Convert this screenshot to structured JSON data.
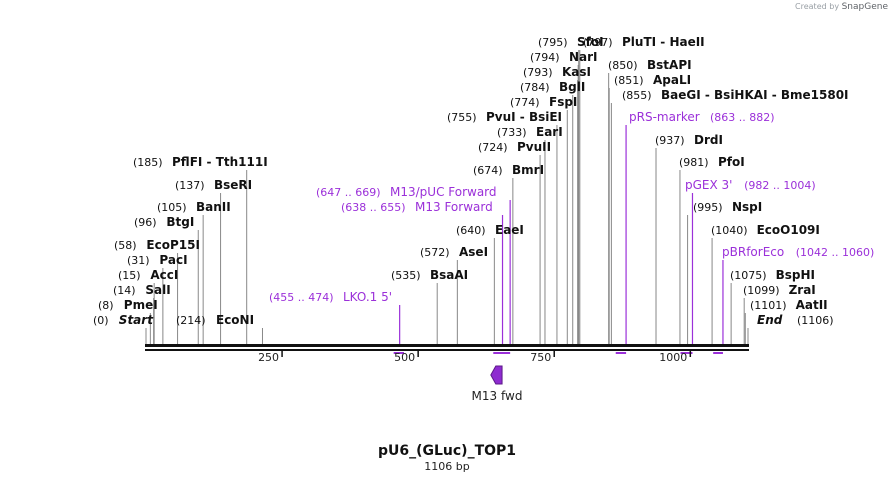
{
  "credit": {
    "prefix": "Created by",
    "brand": "SnapGene"
  },
  "plasmid": {
    "name": "pU6_(GLuc)_TOP1",
    "length_label": "1106 bp",
    "length": 1106
  },
  "axis": {
    "ticks": [
      "250",
      "500",
      "750",
      "1000"
    ]
  },
  "primer_label": "M13 fwd",
  "colors": {
    "enzyme": "#111111",
    "feature": "#9b30d9",
    "backbone": "#111111",
    "leader": "#888888"
  },
  "enzymes": [
    {
      "name": "Start",
      "pos": "(0)",
      "bp": 0,
      "italic": true
    },
    {
      "name": "PmeI",
      "pos": "(8)",
      "bp": 8
    },
    {
      "name": "SalI",
      "pos": "(14)",
      "bp": 14
    },
    {
      "name": "AccI",
      "pos": "(15)",
      "bp": 15
    },
    {
      "name": "PacI",
      "pos": "(31)",
      "bp": 31
    },
    {
      "name": "EcoP15I",
      "pos": "(58)",
      "bp": 58
    },
    {
      "name": "BtgI",
      "pos": "(96)",
      "bp": 96
    },
    {
      "name": "BanII",
      "pos": "(105)",
      "bp": 105
    },
    {
      "name": "BseRI",
      "pos": "(137)",
      "bp": 137
    },
    {
      "name": "PflFI  -  Tth111I",
      "pos": "(185)",
      "bp": 185
    },
    {
      "name": "EcoNI",
      "pos": "(214)",
      "bp": 214,
      "posLeft": true
    },
    {
      "name": "BsaAI",
      "pos": "(535)",
      "bp": 535
    },
    {
      "name": "AseI",
      "pos": "(572)",
      "bp": 572
    },
    {
      "name": "EaeI",
      "pos": "(640)",
      "bp": 640
    },
    {
      "name": "BmrI",
      "pos": "(674)",
      "bp": 674
    },
    {
      "name": "PvuII",
      "pos": "(724)",
      "bp": 724
    },
    {
      "name": "EarI",
      "pos": "(733)",
      "bp": 733
    },
    {
      "name": "PvuI  -  BsiEI",
      "pos": "(755)",
      "bp": 755
    },
    {
      "name": "FspI",
      "pos": "(774)",
      "bp": 774
    },
    {
      "name": "BglI",
      "pos": "(784)",
      "bp": 784
    },
    {
      "name": "KasI",
      "pos": "(793)",
      "bp": 793
    },
    {
      "name": "NarI",
      "pos": "(794)",
      "bp": 794
    },
    {
      "name": "SfoI",
      "pos": "(795)",
      "bp": 795
    },
    {
      "name": "PluTI  -  HaeII",
      "pos": "(797)",
      "bp": 797
    },
    {
      "name": "BstAPI",
      "pos": "(850)",
      "bp": 850
    },
    {
      "name": "ApaLI",
      "pos": "(851)",
      "bp": 851
    },
    {
      "name": "BaeGI  -  BsiHKAI  -  Bme1580I",
      "pos": "(855)",
      "bp": 855
    },
    {
      "name": "DrdI",
      "pos": "(937)",
      "bp": 937
    },
    {
      "name": "PfoI",
      "pos": "(981)",
      "bp": 981
    },
    {
      "name": "NspI",
      "pos": "(995)",
      "bp": 995
    },
    {
      "name": "EcoO109I",
      "pos": "(1040)",
      "bp": 1040
    },
    {
      "name": "BspHI",
      "pos": "(1075)",
      "bp": 1075
    },
    {
      "name": "ZraI",
      "pos": "(1099)",
      "bp": 1099
    },
    {
      "name": "AatII",
      "pos": "(1101)",
      "bp": 1101
    },
    {
      "name": "End",
      "pos": "(1106)",
      "bp": 1106,
      "italic": true
    }
  ],
  "features": [
    {
      "name": "LKO.1 5'",
      "pos": "(455 .. 474)",
      "start": 455,
      "end": 474
    },
    {
      "name": "M13 Forward",
      "pos": "(638 .. 655)",
      "start": 638,
      "end": 655
    },
    {
      "name": "M13/pUC Forward",
      "pos": "(647 .. 669)",
      "start": 647,
      "end": 669
    },
    {
      "name": "pRS-marker",
      "pos": "(863 .. 882)",
      "start": 863,
      "end": 882
    },
    {
      "name": "pGEX 3'",
      "pos": "(982 .. 1004)",
      "start": 982,
      "end": 1004
    },
    {
      "name": "pBRforEco",
      "pos": "(1042 .. 1060)",
      "start": 1042,
      "end": 1060
    }
  ]
}
